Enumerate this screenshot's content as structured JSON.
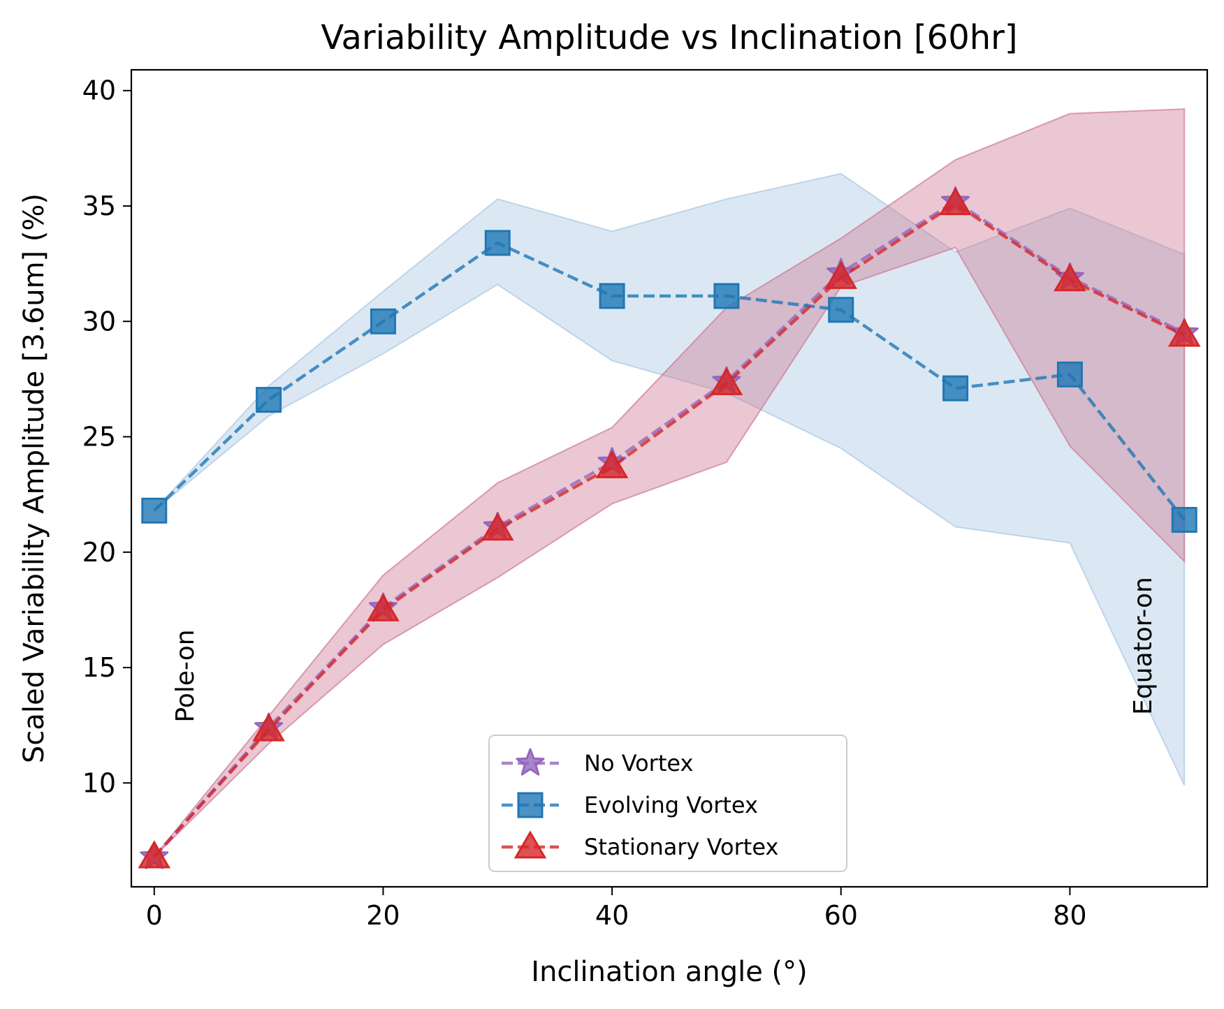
{
  "chart_data": {
    "type": "line",
    "title": "Variability Amplitude vs Inclination [60hr]",
    "xlabel": "Inclination angle ($^\\circ$)",
    "xlabel_display": "Inclination angle (°)",
    "ylabel": "Scaled Variability Amplitude [3.6um] (%)",
    "xlim": [
      -2,
      92
    ],
    "ylim": [
      5.5,
      40.9
    ],
    "x_ticks": [
      0,
      20,
      40,
      60,
      80
    ],
    "y_ticks": [
      10,
      15,
      20,
      25,
      30,
      35,
      40
    ],
    "x": [
      0,
      10,
      20,
      30,
      40,
      50,
      60,
      70,
      80,
      90
    ],
    "series": [
      {
        "name": "No Vortex",
        "color": "#9467bd",
        "marker": "star",
        "linestyle": "dashed",
        "values": [
          6.8,
          12.4,
          17.6,
          21.1,
          23.9,
          27.4,
          32.1,
          35.2,
          31.9,
          29.5
        ]
      },
      {
        "name": "Evolving Vortex",
        "color": "#1f77b4",
        "marker": "square",
        "linestyle": "dashed",
        "values": [
          21.8,
          26.6,
          30.0,
          33.4,
          31.1,
          31.1,
          30.5,
          27.1,
          27.7,
          21.4
        ],
        "band_upper": [
          21.8,
          27.2,
          31.3,
          35.3,
          33.9,
          35.3,
          36.4,
          33.0,
          34.9,
          32.9
        ],
        "band_lower": [
          21.8,
          25.9,
          28.6,
          31.6,
          28.3,
          26.9,
          24.5,
          21.1,
          20.4,
          9.9
        ],
        "band_color": "#a9c8e3"
      },
      {
        "name": "Stationary Vortex",
        "color": "#d62728",
        "marker": "triangle",
        "linestyle": "dashed",
        "values": [
          6.8,
          12.3,
          17.5,
          21.0,
          23.7,
          27.3,
          31.9,
          35.1,
          31.8,
          29.4
        ],
        "band_upper": [
          6.8,
          12.9,
          19.0,
          23.0,
          25.4,
          30.6,
          33.6,
          37.0,
          39.0,
          39.2
        ],
        "band_lower": [
          6.8,
          11.7,
          16.0,
          18.9,
          22.1,
          23.9,
          31.5,
          33.2,
          24.6,
          19.6
        ],
        "band_color": "#cc7a93"
      }
    ],
    "legend_position": "bottom-center",
    "annotations": [
      "Pole-on",
      "Equator-on"
    ],
    "grid": false
  }
}
